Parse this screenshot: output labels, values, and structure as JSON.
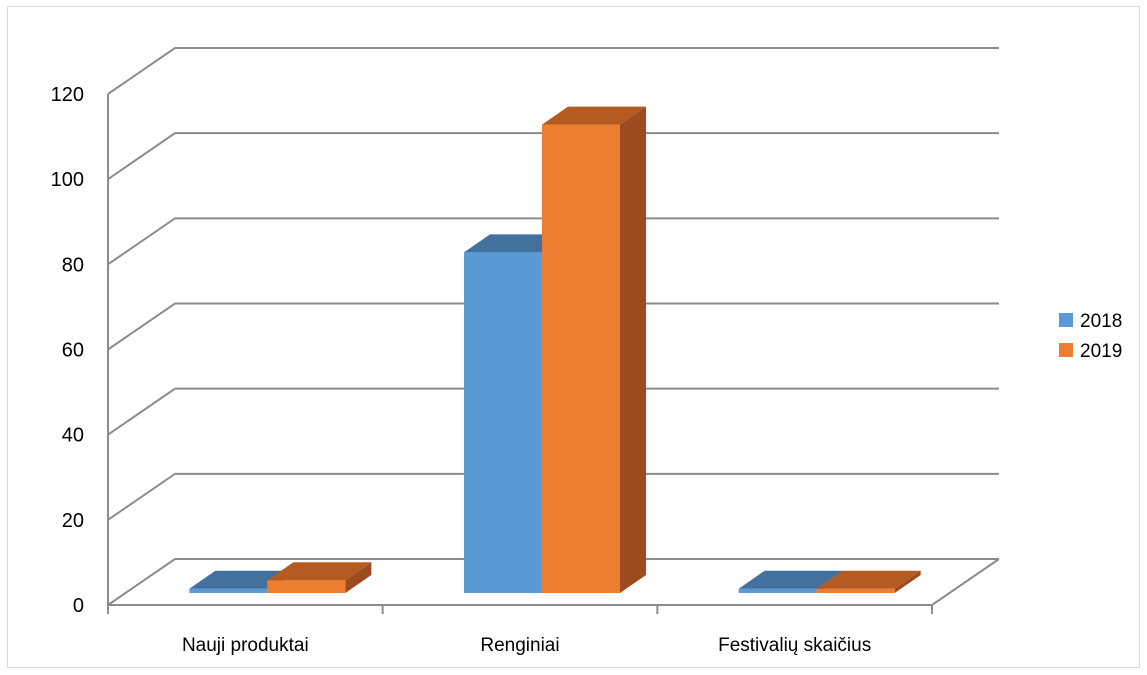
{
  "chart_data": {
    "type": "bar",
    "categories": [
      "Nauji produktai",
      "Renginiai",
      "Festivalių skaičius"
    ],
    "series": [
      {
        "name": "2018",
        "values": [
          1,
          80,
          1
        ],
        "color": "#5b9bd5",
        "top_color": "#41719c",
        "side_color": "#3a6a94"
      },
      {
        "name": "2019",
        "values": [
          3,
          110,
          1
        ],
        "color": "#ed7d31",
        "top_color": "#b55a20",
        "side_color": "#9c4a1e"
      }
    ],
    "ylim": [
      0,
      120
    ],
    "yticks": [
      0,
      20,
      40,
      60,
      80,
      100,
      120
    ],
    "grid": true,
    "legend": "right",
    "style": "3d-clustered-column"
  }
}
